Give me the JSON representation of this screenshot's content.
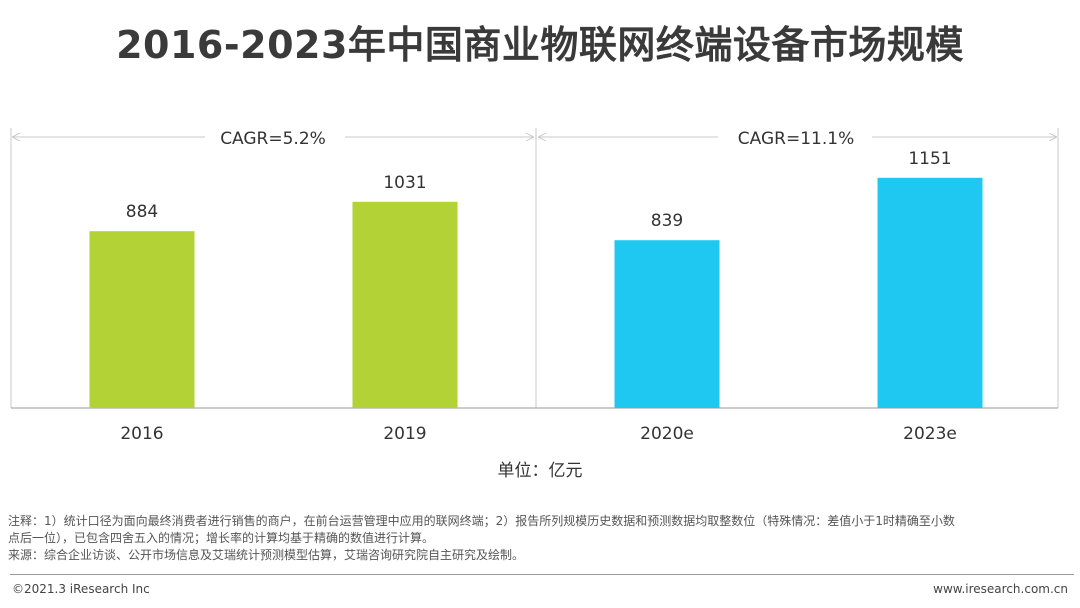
{
  "title": "2016-2023年中国商业物联网终端设备市场规模",
  "unit_label": "单位：亿元",
  "cagr_left": "CAGR=5.2%",
  "cagr_right": "CAGR=11.1%",
  "notes": {
    "line1": "注释：1）统计口径为面向最终消费者进行销售的商户，在前台运营管理中应用的联网终端；2）报告所列规模历史数据和预测数据均取整数位（特殊情况：差值小于1时精确至小数",
    "line2": "点后一位），已包含四舍五入的情况；增长率的计算均基于精确的数值进行计算。",
    "line3": "来源：综合企业访谈、公开市场信息及艾瑞统计预测模型估算，艾瑞咨询研究院自主研究及绘制。"
  },
  "footer": {
    "copyright": "©2021.3 iResearch Inc",
    "website": "www.iresearch.com.cn"
  },
  "colors": {
    "historical": "#b2d235",
    "forecast": "#1fc8f0",
    "axis": "#bbbbbb"
  },
  "chart_data": {
    "type": "bar",
    "title": "2016-2023年中国商业物联网终端设备市场规模",
    "ylabel": "",
    "xlabel": "",
    "unit": "亿元",
    "categories": [
      "2016",
      "2019",
      "2020e",
      "2023e"
    ],
    "values": [
      884,
      1031,
      839,
      1151
    ],
    "series": [
      {
        "values": [
          884,
          1031,
          null,
          null
        ],
        "color": "#b2d235"
      },
      {
        "values": [
          null,
          null,
          839,
          1151
        ],
        "color": "#1fc8f0"
      }
    ],
    "ylim": [
      0,
      1400
    ],
    "grid": false,
    "annotations": [
      {
        "text": "CAGR=5.2%",
        "from": "2016",
        "to": "2019"
      },
      {
        "text": "CAGR=11.1%",
        "from": "2020e",
        "to": "2023e"
      }
    ]
  }
}
